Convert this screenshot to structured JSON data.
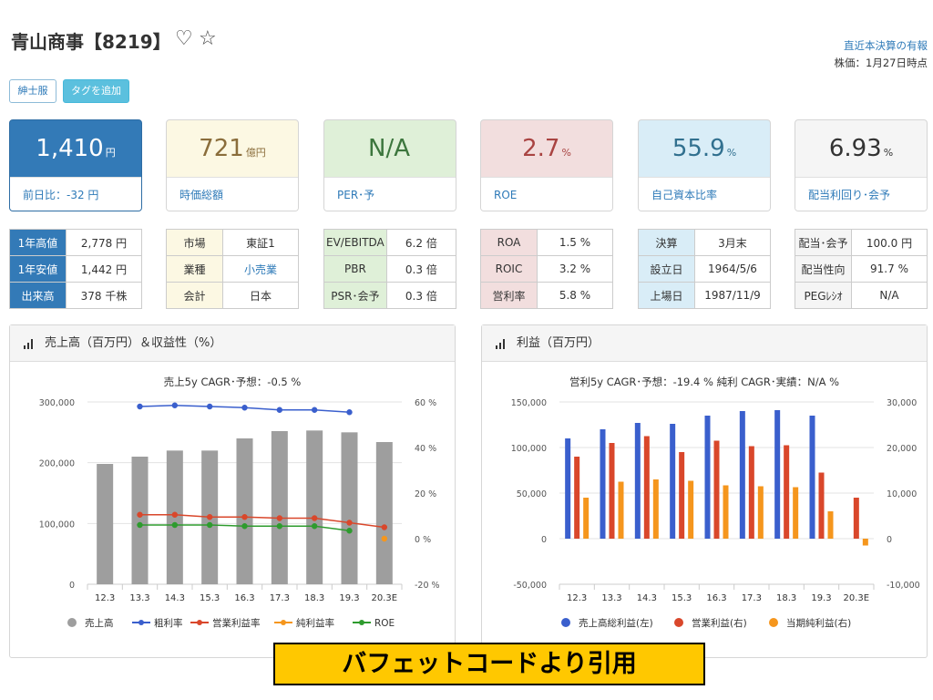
{
  "header": {
    "title": "青山商事【8219】",
    "latest_link": "直近本決算の有報",
    "price_time": "株価：1月27日時点"
  },
  "tags": {
    "tag": "紳士服",
    "add_tag": "タグを追加"
  },
  "cards": [
    {
      "value": "1,410",
      "unit": "円",
      "label": "前日比：-32 円",
      "bg": "#337ab7",
      "color": "#ffffff"
    },
    {
      "value": "721",
      "unit": "億円",
      "label": "時価総額",
      "bg": "#fcf8e3",
      "color": "#8a6d3b"
    },
    {
      "value": "N/A",
      "unit": "",
      "label": "PER･予",
      "bg": "#dff0d8",
      "color": "#3c763d"
    },
    {
      "value": "2.7",
      "unit": "%",
      "label": "ROE",
      "bg": "#f2dede",
      "color": "#a94442"
    },
    {
      "value": "55.9",
      "unit": "%",
      "label": "自己資本比率",
      "bg": "#d9edf7",
      "color": "#31708f"
    },
    {
      "value": "6.93",
      "unit": "%",
      "label": "配当利回り･会予",
      "bg": "#f5f5f5",
      "color": "#333333"
    }
  ],
  "tables": [
    {
      "rows": [
        [
          "1年高値",
          "2,778 円"
        ],
        [
          "1年安値",
          "1,442 円"
        ],
        [
          "出来高",
          "378 千株"
        ]
      ],
      "label_bg": "#337ab7",
      "label_color": "#ffffff"
    },
    {
      "rows": [
        [
          "市場",
          "東証1"
        ],
        [
          "業種",
          "小売業"
        ],
        [
          "会計",
          "日本"
        ]
      ],
      "label_bg": "#fcf8e3",
      "label_color": "#333333"
    },
    {
      "rows": [
        [
          "EV/EBITDA",
          "6.2 倍"
        ],
        [
          "PBR",
          "0.3 倍"
        ],
        [
          "PSR･会予",
          "0.3 倍"
        ]
      ],
      "label_bg": "#dff0d8",
      "label_color": "#333333"
    },
    {
      "rows": [
        [
          "ROA",
          "1.5 %"
        ],
        [
          "ROIC",
          "3.2 %"
        ],
        [
          "営利率",
          "5.8 %"
        ]
      ],
      "label_bg": "#f2dede",
      "label_color": "#333333"
    },
    {
      "rows": [
        [
          "決算",
          "3月末"
        ],
        [
          "設立日",
          "1964/5/6"
        ],
        [
          "上場日",
          "1987/11/9"
        ]
      ],
      "label_bg": "#d9edf7",
      "label_color": "#333333"
    },
    {
      "rows": [
        [
          "配当･会予",
          "100.0 円"
        ],
        [
          "配当性向",
          "91.7 %"
        ],
        [
          "PEGﾚｼｵ",
          "N/A"
        ]
      ],
      "label_bg": "#f5f5f5",
      "label_color": "#333333"
    }
  ],
  "panels": {
    "left_title": "売上高（百万円）＆収益性（%）",
    "right_title": "利益（百万円）"
  },
  "banner": "バフェットコードより引用",
  "chart_data": [
    {
      "type": "bar",
      "subtitle": "売上5y CAGR･予想：-0.5 %",
      "categories": [
        "12.3",
        "13.3",
        "14.3",
        "15.3",
        "16.3",
        "17.3",
        "18.3",
        "19.3",
        "20.3E"
      ],
      "series": [
        {
          "name": "売上高",
          "type": "bar",
          "axis": "left",
          "color": "#9e9e9e",
          "values": [
            198000,
            210000,
            220000,
            220000,
            240000,
            252000,
            253000,
            250000,
            234000
          ]
        },
        {
          "name": "粗利率",
          "type": "line",
          "axis": "right",
          "color": "#3a5fcd",
          "values": [
            null,
            58,
            58.5,
            58,
            57.5,
            56.5,
            56.5,
            55.5,
            null
          ]
        },
        {
          "name": "営業利益率",
          "type": "line",
          "axis": "right",
          "color": "#d9472b",
          "values": [
            null,
            10.5,
            10.5,
            9.5,
            9.5,
            9,
            9,
            7,
            5
          ]
        },
        {
          "name": "純利益率",
          "type": "line",
          "axis": "right",
          "color": "#f5961d",
          "values": [
            null,
            null,
            null,
            null,
            null,
            null,
            null,
            null,
            0
          ]
        },
        {
          "name": "ROE",
          "type": "line",
          "axis": "right",
          "color": "#2e9b2e",
          "values": [
            null,
            6,
            6,
            6,
            5.5,
            5.5,
            5.5,
            3.5,
            null
          ]
        }
      ],
      "y_left": {
        "min": 0,
        "max": 300000,
        "ticks": [
          "0",
          "100,000",
          "200,000",
          "300,000"
        ]
      },
      "y_right": {
        "min": -20,
        "max": 60,
        "ticks": [
          "-20 %",
          "0 %",
          "20 %",
          "40 %",
          "60 %"
        ]
      },
      "legend": "bottom"
    },
    {
      "type": "bar",
      "subtitle": "営利5y CAGR･予想：-19.4 %  純利 CAGR･実績：N/A %",
      "categories": [
        "12.3",
        "13.3",
        "14.3",
        "15.3",
        "16.3",
        "17.3",
        "18.3",
        "19.3",
        "20.3E"
      ],
      "series": [
        {
          "name": "売上高総利益(左)",
          "axis": "left",
          "color": "#3a5fcd",
          "values": [
            110000,
            120000,
            127000,
            126000,
            135000,
            140000,
            141000,
            135000,
            null
          ]
        },
        {
          "name": "営業利益(右)",
          "axis": "right",
          "color": "#d9472b",
          "values": [
            18000,
            21000,
            22500,
            19000,
            21500,
            20300,
            20500,
            14500,
            9000
          ]
        },
        {
          "name": "当期純利益(右)",
          "axis": "right",
          "color": "#f5961d",
          "values": [
            9000,
            12500,
            13000,
            12700,
            11700,
            11500,
            11300,
            6000,
            -1500
          ]
        }
      ],
      "y_left": {
        "min": -50000,
        "max": 150000,
        "ticks": [
          "-50,000",
          "0",
          "50,000",
          "100,000",
          "150,000"
        ]
      },
      "y_right": {
        "min": -10000,
        "max": 30000,
        "ticks": [
          "-10,000",
          "0",
          "10,000",
          "20,000",
          "30,000"
        ]
      },
      "legend": "bottom"
    }
  ]
}
